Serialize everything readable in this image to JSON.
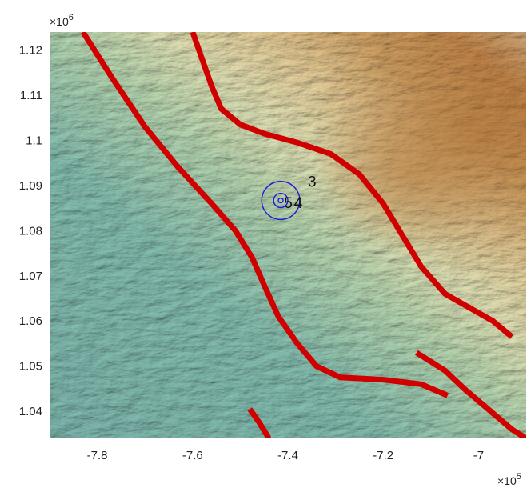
{
  "chart_data": {
    "type": "map",
    "grid": false,
    "xlim": [
      -790000,
      -690000
    ],
    "ylim": [
      1034000,
      1124000
    ],
    "x_ticks": [
      -780000,
      -760000,
      -740000,
      -720000,
      -700000
    ],
    "x_tick_labels": [
      "-7.8",
      "-7.6",
      "-7.4",
      "-7.2",
      "-7"
    ],
    "y_ticks": [
      1040000,
      1050000,
      1060000,
      1070000,
      1080000,
      1090000,
      1100000,
      1110000,
      1120000
    ],
    "y_tick_labels": [
      "1.04",
      "1.05",
      "1.06",
      "1.07",
      "1.08",
      "1.09",
      "1.1",
      "1.11",
      "1.12"
    ],
    "x_multiplier": {
      "base": "×10",
      "exp": "5"
    },
    "y_multiplier": {
      "base": "×10",
      "exp": "6"
    },
    "background": "shaded elevation relief (teal lowlands to tan/brown highlands)",
    "fault_color": "#d10000",
    "circle_color": "#1a1adb",
    "circles": {
      "center": [
        -741500,
        1086700
      ],
      "radii": [
        500,
        1500,
        4000
      ],
      "labels": [
        "5",
        "4",
        "3"
      ]
    },
    "faults": [
      {
        "points": [
          [
            -783000,
            1124000
          ],
          [
            -777000,
            1114000
          ],
          [
            -770000,
            1103000
          ],
          [
            -763000,
            1094000
          ],
          [
            -756000,
            1086000
          ],
          [
            -751000,
            1080000
          ],
          [
            -747500,
            1074000
          ],
          [
            -745000,
            1068000
          ],
          [
            -742000,
            1061000
          ],
          [
            -738000,
            1055000
          ],
          [
            -734000,
            1050000
          ],
          [
            -729000,
            1047500
          ],
          [
            -720000,
            1047000
          ],
          [
            -712000,
            1046000
          ],
          [
            -706500,
            1043500
          ]
        ]
      },
      {
        "points": [
          [
            -760000,
            1124000
          ],
          [
            -758000,
            1118000
          ],
          [
            -756000,
            1112000
          ],
          [
            -754000,
            1107000
          ],
          [
            -750000,
            1103500
          ],
          [
            -745000,
            1101500
          ],
          [
            -738000,
            1099500
          ],
          [
            -731000,
            1097000
          ],
          [
            -725000,
            1092500
          ],
          [
            -720000,
            1086000
          ],
          [
            -716000,
            1079000
          ],
          [
            -712000,
            1072000
          ],
          [
            -707000,
            1066000
          ],
          [
            -702000,
            1063000
          ],
          [
            -697000,
            1060000
          ],
          [
            -693000,
            1056500
          ]
        ]
      },
      {
        "points": [
          [
            -713000,
            1053000
          ],
          [
            -707000,
            1049000
          ],
          [
            -703000,
            1045000
          ],
          [
            -698000,
            1040500
          ],
          [
            -693000,
            1036000
          ],
          [
            -690000,
            1034000
          ]
        ]
      },
      {
        "points": [
          [
            -748000,
            1040500
          ],
          [
            -746000,
            1037500
          ],
          [
            -744000,
            1034000
          ]
        ]
      }
    ]
  }
}
